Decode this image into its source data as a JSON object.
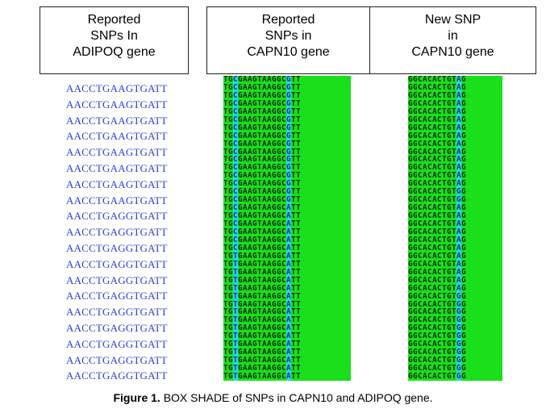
{
  "panels": {
    "adipoq": {
      "header": [
        "Reported",
        "SNPs In",
        "ADIPOQ gene"
      ],
      "sequences": [
        "AACCTGAAGTGATT",
        "AACCTGAAGTGATT",
        "AACCTGAAGTGATT",
        "AACCTGAAGTGATT",
        "AACCTGAAGTGATT",
        "AACCTGAAGTGATT",
        "AACCTGAAGTGATT",
        "AACCTGAAGTGATT",
        "AACCTGAGGTGATT",
        "AACCTGAGGTGATT",
        "AACCTGAGGTGATT",
        "AACCTGAGGTGATT",
        "AACCTGAGGTGATT",
        "AACCTGAGGTGATT",
        "AACCTGAGGTGATT",
        "AACCTGAGGTGATT",
        "AACCTGAGGTGATT",
        "AACCTGAGGTGATT",
        "AACCTGAGGTGATT"
      ]
    },
    "capn10_reported": {
      "header": [
        "Reported",
        "SNPs in",
        "CAPN10 gene"
      ],
      "sequences": [
        "TGCGAAGTAAGGCGTT",
        "TGCGAAGTAAGGCGTT",
        "TGCGAAGTAAGGCGTT",
        "TGCGAAGTAAGGCGTT",
        "TGCGAAGTAAGGCGTT",
        "TGCGAAGTAAGGCGTT",
        "TGCGAAGTAAGGCGTT",
        "TGCGAAGTAAGGCGTT",
        "TGCGAAGTAAGGCGTT",
        "TGCGAAGTAAGGCGTT",
        "TGCGAAGTAAGGCGTT",
        "TGCGAAGTAAGGCGTT",
        "TGCGAAGTAAGGCGTT",
        "TGCGAAGTAAGGCGTT",
        "TGCGAAGTAAGGCGTT",
        "TGCGAAGTAAGGCGTT",
        "TGCGAAGTAAGGCATT",
        "TGCGAAGTAAGGCATT",
        "TGCGAAGTAAGGCATT",
        "TGCGAAGTAAGGCATT",
        "TGCGAAGTAAGGCATT",
        "TGCGAAGTAAGGCATT",
        "TGTGAAGTAAGGCATT",
        "TGTGAAGTAAGGCATT",
        "TGTGAAGTAAGGCATT",
        "TGTGAAGTAAGGCATT",
        "TGTGAAGTAAGGCATT",
        "TGTGAAGTAAGGCATT",
        "TGTGAAGTAAGGCATT",
        "TGTGAAGTAAGGCATT",
        "TGTGAAGTAAGGCATT",
        "TGTGAAGTAAGGCATT",
        "TGTGAAGTAAGGCATT",
        "TGTGAAGTAAGGCATT",
        "TGTGAAGTAAGGCATT",
        "TGTGAAGTAAGGCATT",
        "TGTGAAGTAAGGCATT",
        "TGTGAAGTAAGGCATT"
      ]
    },
    "capn10_new": {
      "header": [
        "New SNP",
        "in",
        "CAPN10 gene"
      ],
      "sequences": [
        "GGCACACTGTAG",
        "GGCACACTGTAG",
        "GGCACACTGTAG",
        "GGCACACTGTAG",
        "GGCACACTGTAG",
        "GGCACACTGTAG",
        "GGCACACTGTAG",
        "GGCACACTGTAG",
        "GGCACACTGTAG",
        "GGCACACTGTAG",
        "GGCACACTGTAG",
        "GGCACACTGTAG",
        "GGCACACTGTAG",
        "GGCACACTGTAG",
        "GGCACACTGTGG",
        "GGCACACTGTGG",
        "GGCACACTGTAG",
        "GGCACACTGTAG",
        "GGCACACTGTAG",
        "GGCACACTGTAG",
        "GGCACACTGTAG",
        "GGCACACTGTAG",
        "GGCACACTGTAG",
        "GGCACACTGTAG",
        "GGCACACTGTAG",
        "GGCACACTGTAG",
        "GGCACACTGTAG",
        "GGCACACTGTGG",
        "GGCACACTGTGG",
        "GGCACACTGTGG",
        "GGCACACTGTGG",
        "GGCACACTGTGG",
        "GGCACACTGTGG",
        "GGCACACTGTGG",
        "GGCACACTGTGG",
        "GGCACACTGTGG",
        "GGCACACTGTGG",
        "GGCACACTGTGG"
      ]
    }
  },
  "caption": {
    "label": "Figure 1.",
    "text": " BOX SHADE of SNPs in CAPN10 and ADIPOQ gene."
  },
  "colors": {
    "adipoq_text": "#2a3fd6",
    "shade_green": "#19e01a",
    "shade_highlight": "#2fd3e8"
  }
}
